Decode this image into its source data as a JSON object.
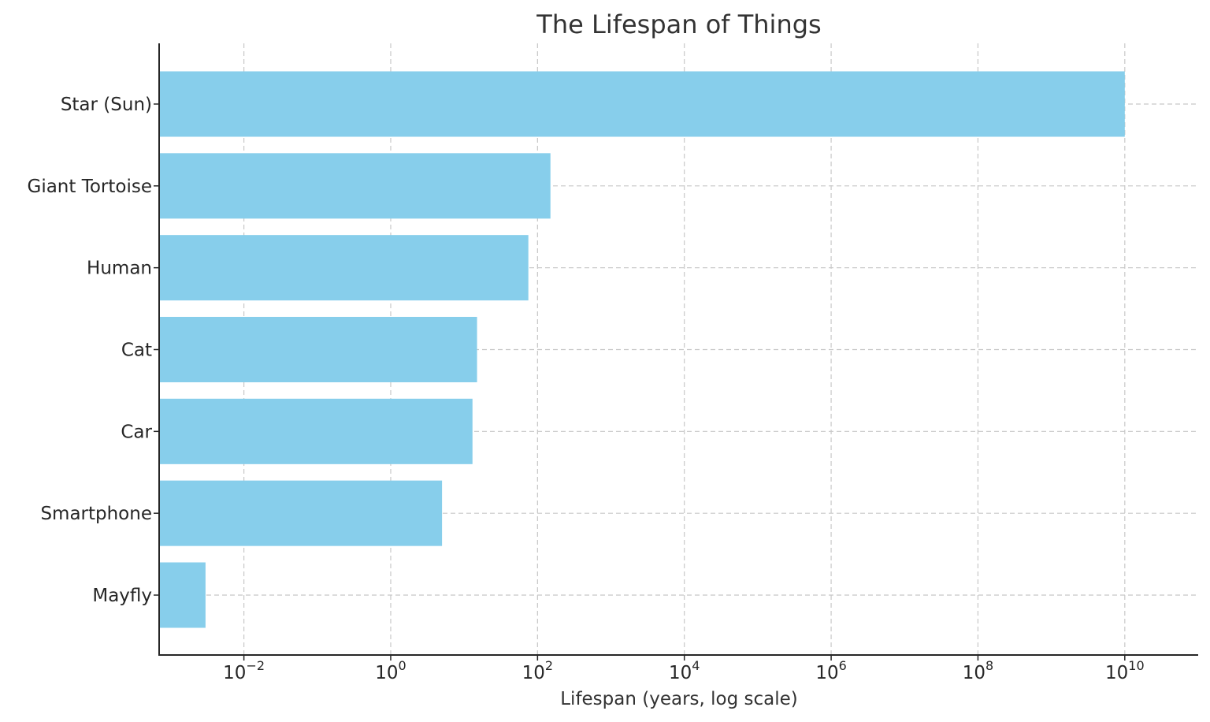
{
  "chart_data": {
    "type": "bar",
    "orientation": "horizontal",
    "title": "The Lifespan of Things",
    "xlabel": "Lifespan (years, log scale)",
    "ylabel": "",
    "xscale": "log",
    "xlim": [
      0.0007,
      100000000000
    ],
    "xticks": [
      {
        "value": 0.01,
        "base": "10",
        "exp": "−2"
      },
      {
        "value": 1,
        "base": "10",
        "exp": "0"
      },
      {
        "value": 100,
        "base": "10",
        "exp": "2"
      },
      {
        "value": 10000,
        "base": "10",
        "exp": "4"
      },
      {
        "value": 1000000,
        "base": "10",
        "exp": "6"
      },
      {
        "value": 100000000,
        "base": "10",
        "exp": "8"
      },
      {
        "value": 10000000000,
        "base": "10",
        "exp": "10"
      }
    ],
    "categories": [
      "Star (Sun)",
      "Giant Tortoise",
      "Human",
      "Cat",
      "Car",
      "Smartphone",
      "Mayfly"
    ],
    "values": [
      10000000000,
      150,
      75,
      15,
      13,
      5,
      0.003
    ],
    "grid": true,
    "legend": "none",
    "bar_color": "#87ceeb"
  }
}
